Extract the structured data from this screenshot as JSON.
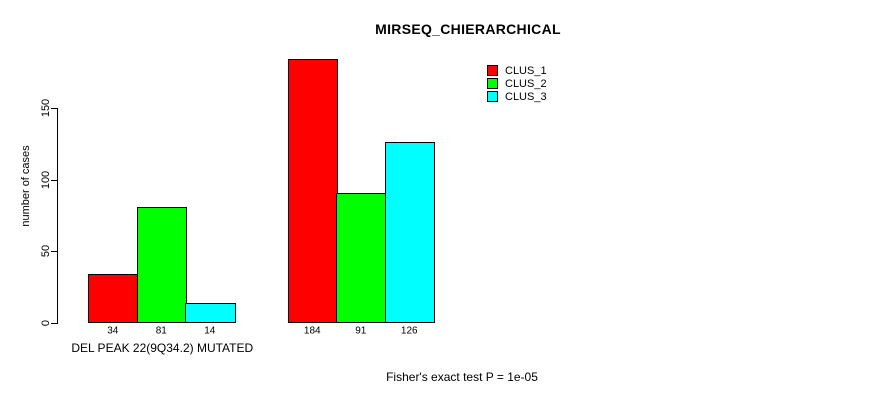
{
  "chart_data": {
    "type": "bar",
    "title": "MIRSEQ_CHIERARCHICAL",
    "ylabel": "number of cases",
    "xlabel": "",
    "categories": [
      "DEL PEAK 22(9Q34.2) MUTATED",
      ""
    ],
    "series": [
      {
        "name": "CLUS_1",
        "color": "#ff0000",
        "values": [
          34,
          184
        ]
      },
      {
        "name": "CLUS_2",
        "color": "#00ff00",
        "values": [
          81,
          91
        ]
      },
      {
        "name": "CLUS_3",
        "color": "#00ffff",
        "values": [
          14,
          126
        ]
      }
    ],
    "bar_value_labels": [
      [
        "34",
        "81",
        "14"
      ],
      [
        "184",
        "91",
        "126"
      ]
    ],
    "yticks": [
      0,
      50,
      100,
      150
    ],
    "ylim": [
      0,
      150
    ],
    "grid": false,
    "legend_position": "top-right",
    "annotation": "Fisher's exact test P = 1e-05",
    "axis_color": "#000000",
    "background_color": "#ffffff"
  }
}
